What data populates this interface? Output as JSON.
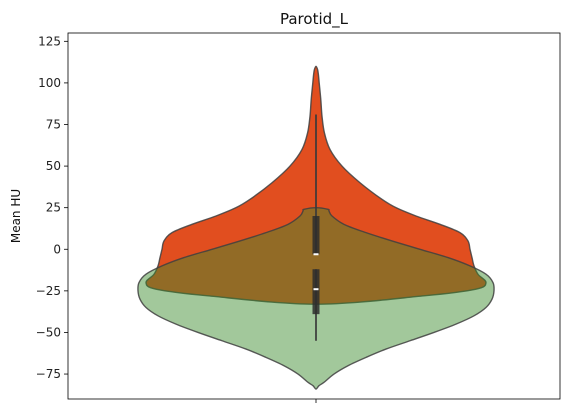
{
  "chart_data": {
    "type": "violin",
    "title": "Parotid_L",
    "xlabel": "",
    "ylabel": "Mean HU",
    "ylim": [
      -90,
      130
    ],
    "yticks": [
      -75,
      -50,
      -25,
      0,
      25,
      50,
      75,
      100,
      125
    ],
    "grid": false,
    "legend": "none",
    "series": [
      {
        "color": "#e14e1f",
        "opacity": 1.0,
        "range": [
          -33,
          110
        ],
        "density_profile": [
          [
            -33,
            0.0
          ],
          [
            -28,
            0.54
          ],
          [
            -24,
            0.8
          ],
          [
            -20,
            0.85
          ],
          [
            -15,
            0.81
          ],
          [
            -10,
            0.79
          ],
          [
            -5,
            0.78
          ],
          [
            0,
            0.77
          ],
          [
            5,
            0.76
          ],
          [
            10,
            0.72
          ],
          [
            15,
            0.62
          ],
          [
            20,
            0.5
          ],
          [
            25,
            0.4
          ],
          [
            30,
            0.33
          ],
          [
            40,
            0.22
          ],
          [
            50,
            0.13
          ],
          [
            60,
            0.07
          ],
          [
            70,
            0.042
          ],
          [
            80,
            0.03
          ],
          [
            90,
            0.024
          ],
          [
            100,
            0.016
          ],
          [
            105,
            0.012
          ],
          [
            108,
            0.008
          ],
          [
            110,
            0.0
          ]
        ]
      },
      {
        "color": "#3d8c2e",
        "opacity": 0.48,
        "range": [
          -84,
          25
        ],
        "density_profile": [
          [
            -84,
            0.0
          ],
          [
            -82,
            0.015
          ],
          [
            -80,
            0.04
          ],
          [
            -75,
            0.09
          ],
          [
            -70,
            0.16
          ],
          [
            -65,
            0.25
          ],
          [
            -60,
            0.35
          ],
          [
            -55,
            0.47
          ],
          [
            -50,
            0.59
          ],
          [
            -45,
            0.7
          ],
          [
            -40,
            0.79
          ],
          [
            -35,
            0.85
          ],
          [
            -30,
            0.88
          ],
          [
            -25,
            0.89
          ],
          [
            -20,
            0.885
          ],
          [
            -15,
            0.85
          ],
          [
            -10,
            0.77
          ],
          [
            -5,
            0.66
          ],
          [
            0,
            0.52
          ],
          [
            5,
            0.38
          ],
          [
            10,
            0.25
          ],
          [
            15,
            0.14
          ],
          [
            20,
            0.08
          ],
          [
            23,
            0.065
          ],
          [
            24,
            0.06
          ],
          [
            25,
            0.0
          ]
        ]
      }
    ],
    "box": [
      {
        "whisker": [
          -3,
          81
        ],
        "quartiles": [
          -3,
          20
        ],
        "median": -3
      },
      {
        "whisker": [
          -55,
          -12
        ],
        "quartiles": [
          -39,
          -12
        ],
        "median": -24
      }
    ]
  }
}
